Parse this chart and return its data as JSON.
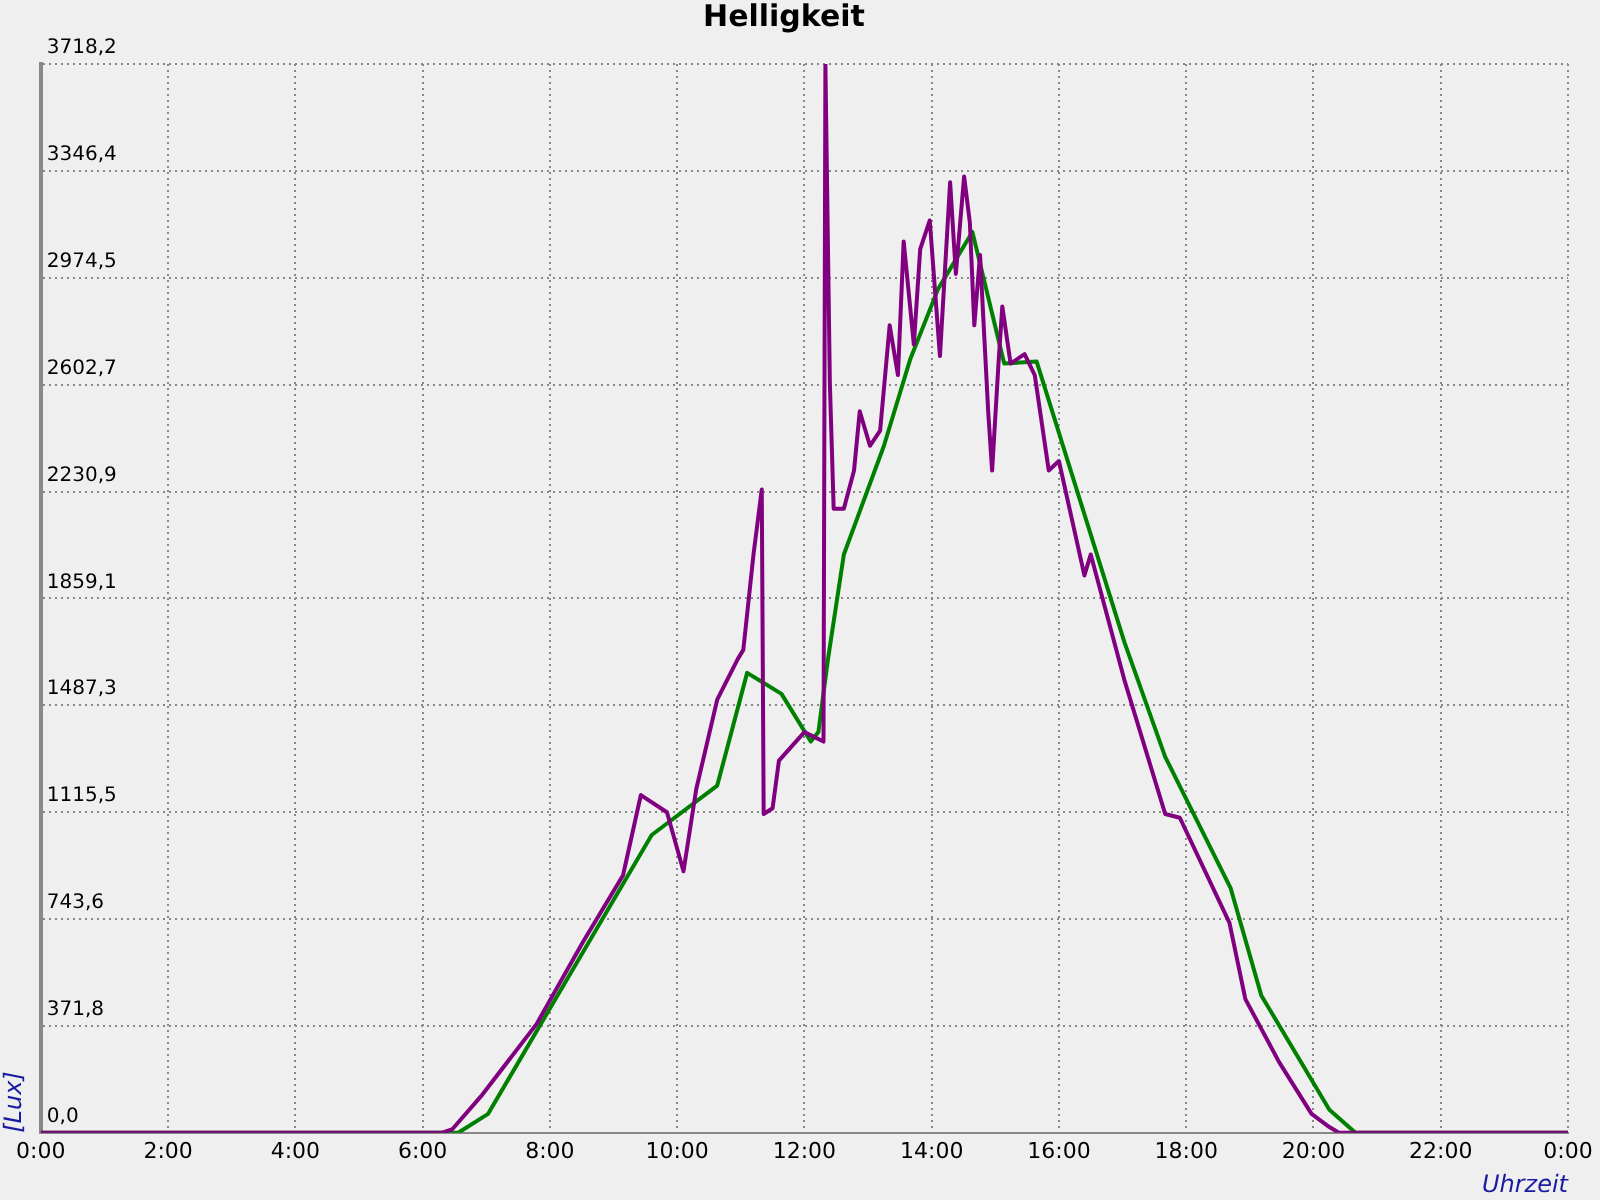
{
  "chart_data": {
    "type": "line",
    "title": "Helligkeit",
    "xlabel": "Uhrzeit",
    "ylabel": "[Lux]",
    "xlim": [
      0,
      24
    ],
    "ylim": [
      0,
      3718.2
    ],
    "xticks": [
      {
        "value": 0,
        "label": "0:00"
      },
      {
        "value": 2,
        "label": "2:00"
      },
      {
        "value": 4,
        "label": "4:00"
      },
      {
        "value": 6,
        "label": "6:00"
      },
      {
        "value": 8,
        "label": "8:00"
      },
      {
        "value": 10,
        "label": "10:00"
      },
      {
        "value": 12,
        "label": "12:00"
      },
      {
        "value": 14,
        "label": "14:00"
      },
      {
        "value": 16,
        "label": "16:00"
      },
      {
        "value": 18,
        "label": "18:00"
      },
      {
        "value": 20,
        "label": "20:00"
      },
      {
        "value": 22,
        "label": "22:00"
      },
      {
        "value": 24,
        "label": "0:00"
      }
    ],
    "yticks": [
      {
        "value": 0,
        "label": "0,0"
      },
      {
        "value": 371.8,
        "label": "371,8"
      },
      {
        "value": 743.6,
        "label": "743,6"
      },
      {
        "value": 1115.5,
        "label": "1115,5"
      },
      {
        "value": 1487.3,
        "label": "1487,3"
      },
      {
        "value": 1859.1,
        "label": "1859,1"
      },
      {
        "value": 2230.9,
        "label": "2230,9"
      },
      {
        "value": 2602.7,
        "label": "2602,7"
      },
      {
        "value": 2974.5,
        "label": "2974,5"
      },
      {
        "value": 3346.4,
        "label": "3346,4"
      },
      {
        "value": 3718.2,
        "label": "3718,2"
      }
    ],
    "grid": true,
    "line_style": "solid",
    "marker": "none",
    "series": [
      {
        "color": "#800080",
        "x": [
          0,
          6.3,
          6.47,
          6.94,
          7.79,
          8.52,
          9.15,
          9.43,
          9.84,
          10.1,
          10.3,
          10.63,
          10.95,
          11.04,
          11.2,
          11.33,
          11.36,
          11.5,
          11.6,
          12.0,
          12.3,
          12.33,
          12.4,
          12.46,
          12.62,
          12.78,
          12.87,
          13.03,
          13.19,
          13.34,
          13.47,
          13.56,
          13.72,
          13.82,
          13.97,
          14.13,
          14.29,
          14.38,
          14.51,
          14.6,
          14.67,
          14.76,
          14.89,
          14.95,
          15.05,
          15.11,
          15.24,
          15.46,
          15.62,
          15.84,
          16.0,
          16.4,
          16.5,
          17.03,
          17.67,
          17.9,
          18.68,
          18.93,
          19.46,
          19.97,
          20.25,
          20.4,
          24
        ],
        "values": [
          0,
          0,
          13,
          133,
          378,
          664,
          896,
          1175,
          1115,
          910,
          1195,
          1507,
          1647,
          1680,
          2012,
          2238,
          1109,
          1129,
          1295,
          1394,
          1361,
          3718,
          2609,
          2171,
          2171,
          2304,
          2510,
          2390,
          2443,
          2809,
          2636,
          3101,
          2742,
          3074,
          3174,
          2702,
          3307,
          2988,
          3327,
          3167,
          2809,
          3054,
          2503,
          2304,
          2676,
          2875,
          2676,
          2709,
          2636,
          2304,
          2337,
          1939,
          2012,
          1574,
          1109,
          1096,
          730,
          465,
          246,
          66,
          20,
          0,
          0
        ]
      },
      {
        "color": "#008000",
        "x": [
          0,
          6.56,
          7.03,
          9.6,
          10.63,
          11.1,
          11.64,
          12.1,
          12.22,
          12.37,
          12.62,
          13.25,
          13.66,
          14.1,
          14.64,
          15.14,
          15.65,
          17.03,
          17.67,
          18.7,
          19.18,
          20.25,
          20.66,
          24
        ],
        "values": [
          0,
          0,
          66,
          1036,
          1208,
          1600,
          1527,
          1361,
          1394,
          1647,
          2012,
          2390,
          2689,
          2935,
          3134,
          2676,
          2683,
          1706,
          1308,
          850,
          478,
          80,
          0,
          0
        ]
      }
    ]
  }
}
